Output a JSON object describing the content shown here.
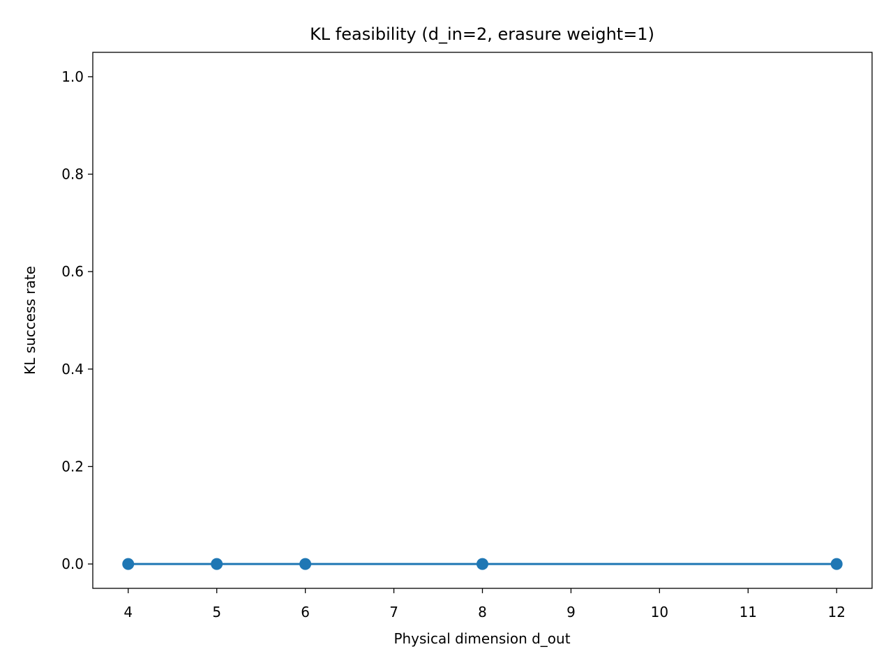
{
  "chart_data": {
    "type": "line",
    "title": "KL feasibility (d_in=2, erasure weight=1)",
    "xlabel": "Physical dimension d_out",
    "ylabel": "KL success rate",
    "xlim": [
      3.6,
      12.4
    ],
    "ylim": [
      -0.05,
      1.05
    ],
    "xticks": [
      4,
      5,
      6,
      7,
      8,
      9,
      10,
      11,
      12
    ],
    "xtick_labels": [
      "4",
      "5",
      "6",
      "7",
      "8",
      "9",
      "10",
      "11",
      "12"
    ],
    "yticks": [
      0.0,
      0.2,
      0.4,
      0.6,
      0.8,
      1.0
    ],
    "ytick_labels": [
      "0.0",
      "0.2",
      "0.4",
      "0.6",
      "0.8",
      "1.0"
    ],
    "grid": false,
    "series": [
      {
        "color": "#1f77b4",
        "marker": "circle",
        "x": [
          4,
          5,
          6,
          8,
          12
        ],
        "y": [
          0.0,
          0.0,
          0.0,
          0.0,
          0.0
        ]
      }
    ]
  }
}
